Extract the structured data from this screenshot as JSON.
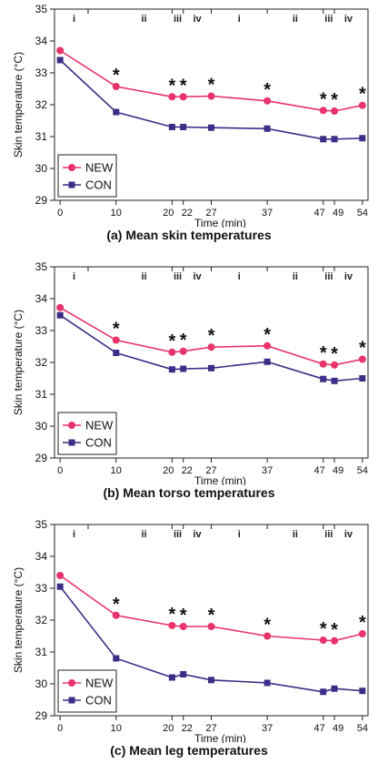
{
  "colors": {
    "new": "#e8336b",
    "con": "#3b2e86",
    "axis": "#222222",
    "star": "#111111"
  },
  "common": {
    "ylabel": "Skin temperature (°C)",
    "xlabel": "Time (min)",
    "yticks": [
      29,
      30,
      31,
      32,
      33,
      34,
      35
    ],
    "xticks": [
      "0",
      "10",
      "20",
      "22",
      "27",
      "37",
      "47",
      "49",
      "54"
    ],
    "phase_labels": [
      "i",
      "ii",
      "iii",
      "iv",
      "i",
      "ii",
      "iii",
      "iv"
    ],
    "significance_marker": "*",
    "legend": [
      "NEW",
      "CON"
    ]
  },
  "chart_data": [
    {
      "type": "line",
      "caption": "(a) Mean skin temperatures",
      "xlabel": "Time (min)",
      "ylabel": "Skin temperature (°C)",
      "ylim": [
        29,
        35
      ],
      "x": [
        0,
        10,
        20,
        22,
        27,
        37,
        47,
        49,
        54
      ],
      "series": [
        {
          "name": "NEW",
          "values": [
            33.7,
            32.57,
            32.25,
            32.25,
            32.27,
            32.12,
            31.82,
            31.8,
            31.98
          ]
        },
        {
          "name": "CON",
          "values": [
            33.4,
            31.77,
            31.3,
            31.3,
            31.28,
            31.25,
            30.92,
            30.92,
            30.95
          ]
        }
      ],
      "significant_at": [
        10,
        20,
        22,
        27,
        37,
        47,
        49,
        54
      ],
      "legend_position": "bottom-left"
    },
    {
      "type": "line",
      "caption": "(b) Mean torso temperatures",
      "xlabel": "Time (min)",
      "ylabel": "Skin temperature (°C)",
      "ylim": [
        29,
        35
      ],
      "x": [
        0,
        10,
        20,
        22,
        27,
        37,
        47,
        49,
        54
      ],
      "series": [
        {
          "name": "NEW",
          "values": [
            33.72,
            32.7,
            32.32,
            32.35,
            32.48,
            32.52,
            31.95,
            31.92,
            32.1
          ]
        },
        {
          "name": "CON",
          "values": [
            33.48,
            32.3,
            31.78,
            31.8,
            31.82,
            32.02,
            31.48,
            31.42,
            31.5
          ]
        }
      ],
      "significant_at": [
        10,
        20,
        22,
        27,
        37,
        47,
        49,
        54
      ],
      "legend_position": "bottom-left"
    },
    {
      "type": "line",
      "caption": "(c) Mean leg temperatures",
      "xlabel": "Time (min)",
      "ylabel": "Skin temperature (°C)",
      "ylim": [
        29,
        35
      ],
      "x": [
        0,
        10,
        20,
        22,
        27,
        37,
        47,
        49,
        54
      ],
      "series": [
        {
          "name": "NEW",
          "values": [
            33.4,
            32.15,
            31.83,
            31.8,
            31.8,
            31.5,
            31.37,
            31.35,
            31.57
          ]
        },
        {
          "name": "CON",
          "values": [
            33.05,
            30.8,
            30.2,
            30.3,
            30.12,
            30.03,
            29.75,
            29.85,
            29.78
          ]
        }
      ],
      "significant_at": [
        10,
        20,
        22,
        27,
        37,
        47,
        49,
        54
      ],
      "legend_position": "bottom-left"
    }
  ]
}
